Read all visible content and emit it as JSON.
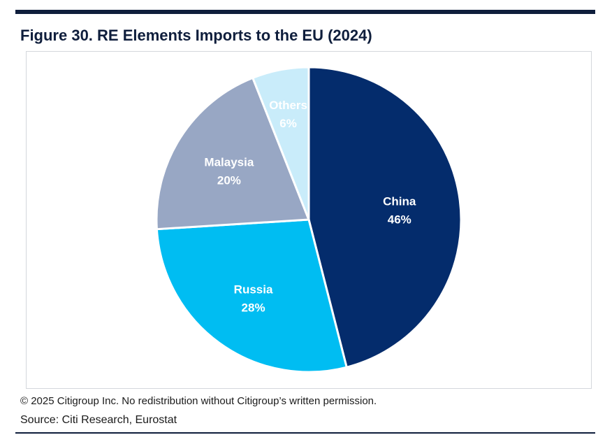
{
  "figure": {
    "title": "Figure 30. RE Elements Imports to the EU (2024)",
    "copyright": "© 2025 Citigroup Inc. No redistribution without Citigroup’s written permission.",
    "source": "Source: Citi Research, Eurostat"
  },
  "chart_data": {
    "type": "pie",
    "start_angle_deg": 0,
    "direction": "clockwise",
    "slices": [
      {
        "label": "China",
        "value": 46,
        "value_label": "46%",
        "color": "#042c6c",
        "text_color": "#ffffff"
      },
      {
        "label": "Russia",
        "value": 28,
        "value_label": "28%",
        "color": "#00bdf2",
        "text_color": "#ffffff"
      },
      {
        "label": "Malaysia",
        "value": 20,
        "value_label": "20%",
        "color": "#98a7c4",
        "text_color": "#ffffff"
      },
      {
        "label": "Others",
        "value": 6,
        "value_label": "6%",
        "color": "#c9ecfa",
        "text_color": "#ffffff"
      }
    ]
  }
}
